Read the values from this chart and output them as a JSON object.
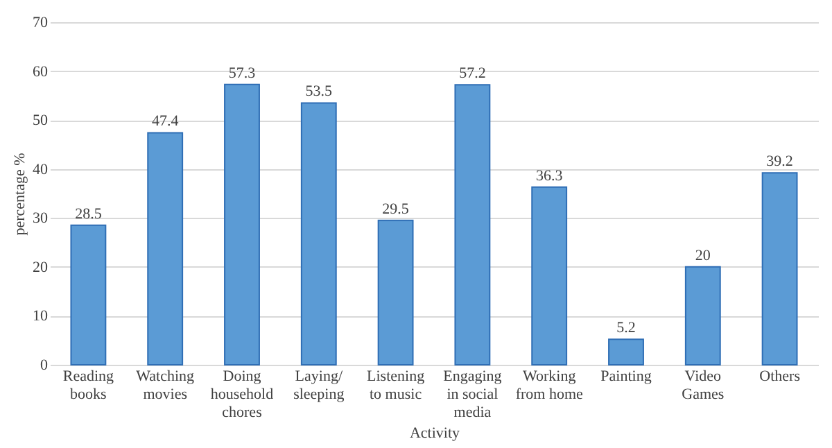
{
  "chart_data": {
    "type": "bar",
    "xlabel": "Activity",
    "ylabel": "percentage %",
    "categories": [
      "Reading books",
      "Watching movies",
      "Doing household chores",
      "Laying/ sleeping",
      "Listening to music",
      "Engaging in social media",
      "Working from home",
      "Painting",
      "Video Games",
      "Others"
    ],
    "values": [
      28.5,
      47.4,
      57.3,
      53.5,
      29.5,
      57.2,
      36.3,
      5.2,
      20,
      39.2
    ],
    "color": "#5b9bd5",
    "ylim": [
      0,
      70
    ],
    "yticks": [
      0,
      10,
      20,
      30,
      40,
      50,
      60,
      70
    ],
    "grid": "y",
    "data_labels": true
  }
}
